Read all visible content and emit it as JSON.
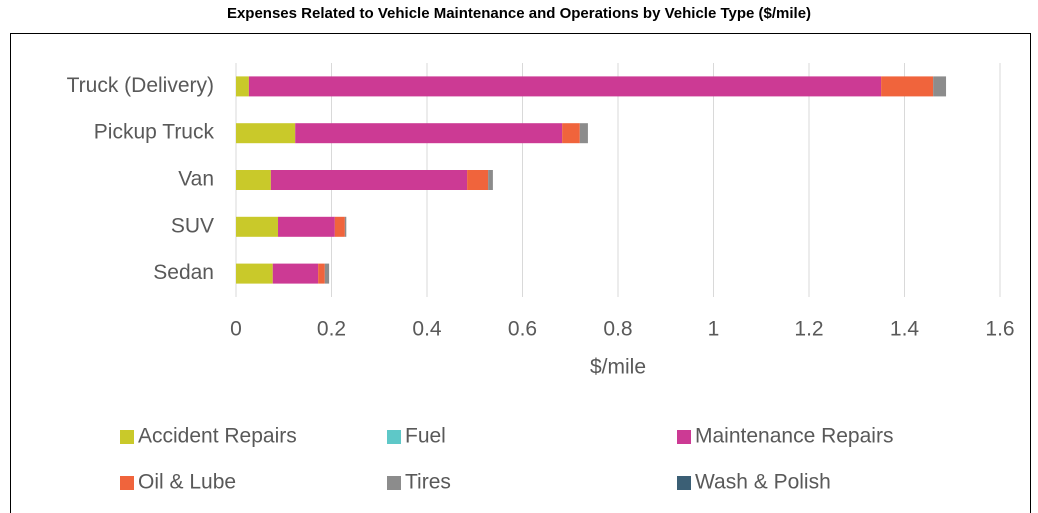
{
  "chart_data": {
    "type": "stacked_barh",
    "title": "Expenses Related to Vehicle Maintenance and Operations by Vehicle Type ($/mile)",
    "xlabel": "$/mile",
    "categories": [
      "Truck (Delivery)",
      "Pickup Truck",
      "Van",
      "SUV",
      "Sedan"
    ],
    "series": [
      {
        "name": "Accident Repairs",
        "color": "#c9c92a",
        "values": [
          0.027,
          0.124,
          0.073,
          0.088,
          0.077
        ]
      },
      {
        "name": "Fuel",
        "color": "#5ec8c8",
        "values": [
          0,
          0,
          0,
          0,
          0
        ]
      },
      {
        "name": "Maintenance Repairs",
        "color": "#cc3a94",
        "values": [
          1.324,
          0.559,
          0.411,
          0.119,
          0.095
        ]
      },
      {
        "name": "Oil & Lube",
        "color": "#f0643c",
        "values": [
          0.109,
          0.037,
          0.044,
          0.021,
          0.014
        ]
      },
      {
        "name": "Tires",
        "color": "#8c8c8c",
        "values": [
          0.027,
          0.017,
          0.01,
          0.003,
          0.009
        ]
      },
      {
        "name": "Wash & Polish",
        "color": "#3b5f75",
        "values": [
          0,
          0,
          0,
          0,
          0
        ]
      }
    ],
    "xlim": [
      0,
      1.6
    ],
    "xticks": [
      0,
      0.2,
      0.4,
      0.6,
      0.8,
      1,
      1.2,
      1.4,
      1.6
    ],
    "grid": true,
    "legend": "bottom"
  }
}
